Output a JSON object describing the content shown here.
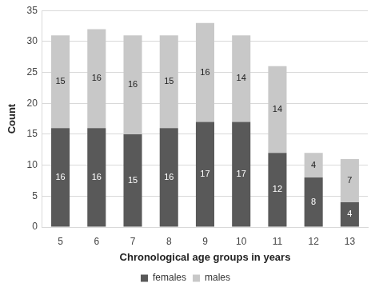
{
  "chart_data": {
    "type": "bar",
    "stacked": true,
    "x_label": "Chronological age groups in years",
    "y_label": "Count",
    "categories": [
      "5",
      "6",
      "7",
      "8",
      "9",
      "10",
      "11",
      "12",
      "13"
    ],
    "series": [
      {
        "name": "females",
        "color": "#595959",
        "values": [
          16,
          16,
          15,
          16,
          17,
          17,
          12,
          8,
          4
        ]
      },
      {
        "name": "males",
        "color": "#c8c8c8",
        "values": [
          15,
          16,
          16,
          15,
          16,
          14,
          14,
          4,
          7
        ]
      }
    ],
    "ylim": [
      0,
      35
    ],
    "yticks": [
      0,
      5,
      10,
      15,
      20,
      25,
      30,
      35
    ],
    "grid": true,
    "legend": "bottom",
    "data_labels": true
  }
}
